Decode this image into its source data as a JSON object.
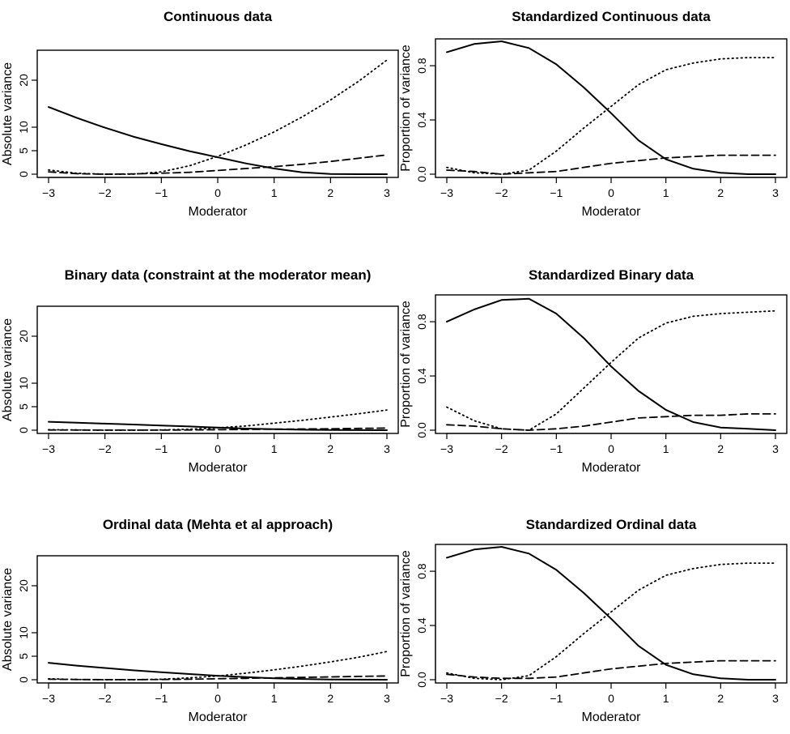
{
  "chart_data": [
    {
      "type": "line",
      "title": "Continuous data",
      "xlabel": "Moderator",
      "ylabel": "Absolute variance",
      "xlim": [
        -3,
        3
      ],
      "ylim": [
        0,
        25
      ],
      "xticks": [
        -3,
        -2,
        -1,
        0,
        1,
        2,
        3
      ],
      "yticks": [
        0,
        5,
        10,
        20
      ],
      "x": [
        -3,
        -2.5,
        -2,
        -1.5,
        -1,
        -0.5,
        0,
        0.5,
        1,
        1.5,
        2,
        2.5,
        3
      ],
      "series": [
        {
          "style": "solid",
          "values": [
            14.3,
            12.0,
            9.9,
            8.0,
            6.4,
            4.9,
            3.6,
            2.3,
            1.2,
            0.4,
            0.05,
            0.0,
            0.0
          ]
        },
        {
          "style": "dotted",
          "values": [
            0.9,
            0.2,
            0.0,
            0.0,
            0.5,
            1.8,
            3.8,
            6.2,
            9.0,
            12.2,
            15.8,
            19.8,
            24.3
          ]
        },
        {
          "style": "dashed",
          "values": [
            0.5,
            0.1,
            0.0,
            0.05,
            0.2,
            0.4,
            0.8,
            1.2,
            1.6,
            2.1,
            2.7,
            3.4,
            4.1
          ]
        }
      ]
    },
    {
      "type": "line",
      "title": "Standardized Continuous data",
      "xlabel": "Moderator",
      "ylabel": "Proportion of variance",
      "xlim": [
        -3,
        3
      ],
      "ylim": [
        0,
        0.95
      ],
      "xticks": [
        -3,
        -2,
        -1,
        0,
        1,
        2,
        3
      ],
      "yticks": [
        "0.0",
        "0.4",
        "0.8"
      ],
      "x": [
        -3,
        -2.5,
        -2,
        -1.5,
        -1,
        -0.5,
        0,
        0.5,
        1,
        1.5,
        2,
        2.5,
        3
      ],
      "series": [
        {
          "style": "solid",
          "values": [
            0.9,
            0.96,
            0.98,
            0.93,
            0.81,
            0.64,
            0.45,
            0.25,
            0.11,
            0.04,
            0.01,
            0.0,
            0.0
          ]
        },
        {
          "style": "dotted",
          "values": [
            0.05,
            0.01,
            0.0,
            0.03,
            0.17,
            0.34,
            0.5,
            0.66,
            0.77,
            0.82,
            0.85,
            0.86,
            0.86
          ]
        },
        {
          "style": "dashed",
          "values": [
            0.03,
            0.02,
            0.0,
            0.01,
            0.02,
            0.05,
            0.08,
            0.1,
            0.12,
            0.13,
            0.14,
            0.14,
            0.14
          ]
        }
      ]
    },
    {
      "type": "line",
      "title": "Binary data (constraint at the moderator mean)",
      "xlabel": "Moderator",
      "ylabel": "Absolute variance",
      "xlim": [
        -3,
        3
      ],
      "ylim": [
        0,
        25
      ],
      "xticks": [
        -3,
        -2,
        -1,
        0,
        1,
        2,
        3
      ],
      "yticks": [
        0,
        5,
        10,
        20
      ],
      "x": [
        -3,
        -2.5,
        -2,
        -1.5,
        -1,
        -0.5,
        0,
        0.5,
        1,
        1.5,
        2,
        2.5,
        3
      ],
      "series": [
        {
          "style": "solid",
          "values": [
            1.8,
            1.6,
            1.4,
            1.2,
            1.0,
            0.8,
            0.55,
            0.35,
            0.2,
            0.1,
            0.04,
            0.01,
            0.0
          ]
        },
        {
          "style": "dotted",
          "values": [
            0.1,
            0.05,
            0.0,
            0.0,
            0.05,
            0.2,
            0.5,
            0.9,
            1.5,
            2.1,
            2.8,
            3.5,
            4.3
          ]
        },
        {
          "style": "dashed",
          "values": [
            0.05,
            0.03,
            0.01,
            0.01,
            0.02,
            0.05,
            0.1,
            0.15,
            0.2,
            0.25,
            0.3,
            0.38,
            0.45
          ]
        }
      ]
    },
    {
      "type": "line",
      "title": "Standardized Binary data",
      "xlabel": "Moderator",
      "ylabel": "Proportion of variance",
      "xlim": [
        -3,
        3
      ],
      "ylim": [
        0,
        0.95
      ],
      "xticks": [
        -3,
        -2,
        -1,
        0,
        1,
        2,
        3
      ],
      "yticks": [
        "0.0",
        "0.4",
        "0.8"
      ],
      "x": [
        -3,
        -2.5,
        -2,
        -1.5,
        -1,
        -0.5,
        0,
        0.5,
        1,
        1.5,
        2,
        2.5,
        3
      ],
      "series": [
        {
          "style": "solid",
          "values": [
            0.8,
            0.89,
            0.96,
            0.97,
            0.86,
            0.68,
            0.47,
            0.29,
            0.15,
            0.06,
            0.02,
            0.01,
            0.0
          ]
        },
        {
          "style": "dotted",
          "values": [
            0.17,
            0.07,
            0.01,
            0.0,
            0.12,
            0.31,
            0.5,
            0.68,
            0.79,
            0.84,
            0.86,
            0.87,
            0.88
          ]
        },
        {
          "style": "dashed",
          "values": [
            0.04,
            0.03,
            0.01,
            0.0,
            0.01,
            0.03,
            0.06,
            0.09,
            0.1,
            0.11,
            0.11,
            0.12,
            0.12
          ]
        }
      ]
    },
    {
      "type": "line",
      "title": "Ordinal data (Mehta et al approach)",
      "xlabel": "Moderator",
      "ylabel": "Absolute variance",
      "xlim": [
        -3,
        3
      ],
      "ylim": [
        0,
        25
      ],
      "xticks": [
        -3,
        -2,
        -1,
        0,
        1,
        2,
        3
      ],
      "yticks": [
        0,
        5,
        10,
        20
      ],
      "x": [
        -3,
        -2.5,
        -2,
        -1.5,
        -1,
        -0.5,
        0,
        0.5,
        1,
        1.5,
        2,
        2.5,
        3
      ],
      "series": [
        {
          "style": "solid",
          "values": [
            3.6,
            3.0,
            2.5,
            2.0,
            1.6,
            1.2,
            0.85,
            0.55,
            0.3,
            0.15,
            0.05,
            0.01,
            0.0
          ]
        },
        {
          "style": "dotted",
          "values": [
            0.2,
            0.05,
            0.0,
            0.0,
            0.1,
            0.4,
            0.8,
            1.4,
            2.1,
            2.9,
            3.8,
            4.8,
            6.0
          ]
        },
        {
          "style": "dashed",
          "values": [
            0.1,
            0.05,
            0.02,
            0.02,
            0.05,
            0.1,
            0.2,
            0.3,
            0.4,
            0.5,
            0.6,
            0.7,
            0.8
          ]
        }
      ]
    },
    {
      "type": "line",
      "title": "Standardized Ordinal data",
      "xlabel": "Moderator",
      "ylabel": "Proportion of variance",
      "xlim": [
        -3,
        3
      ],
      "ylim": [
        0,
        0.95
      ],
      "xticks": [
        -3,
        -2,
        -1,
        0,
        1,
        2,
        3
      ],
      "yticks": [
        "0.0",
        "0.4",
        "0.8"
      ],
      "x": [
        -3,
        -2.5,
        -2,
        -1.5,
        -1,
        -0.5,
        0,
        0.5,
        1,
        1.5,
        2,
        2.5,
        3
      ],
      "series": [
        {
          "style": "solid",
          "values": [
            0.9,
            0.96,
            0.98,
            0.93,
            0.81,
            0.64,
            0.45,
            0.25,
            0.11,
            0.04,
            0.01,
            0.0,
            0.0
          ]
        },
        {
          "style": "dotted",
          "values": [
            0.05,
            0.01,
            0.0,
            0.03,
            0.17,
            0.34,
            0.5,
            0.66,
            0.77,
            0.82,
            0.85,
            0.86,
            0.86
          ]
        },
        {
          "style": "dashed",
          "values": [
            0.04,
            0.02,
            0.01,
            0.01,
            0.02,
            0.05,
            0.08,
            0.1,
            0.12,
            0.13,
            0.14,
            0.14,
            0.14
          ]
        }
      ]
    }
  ]
}
